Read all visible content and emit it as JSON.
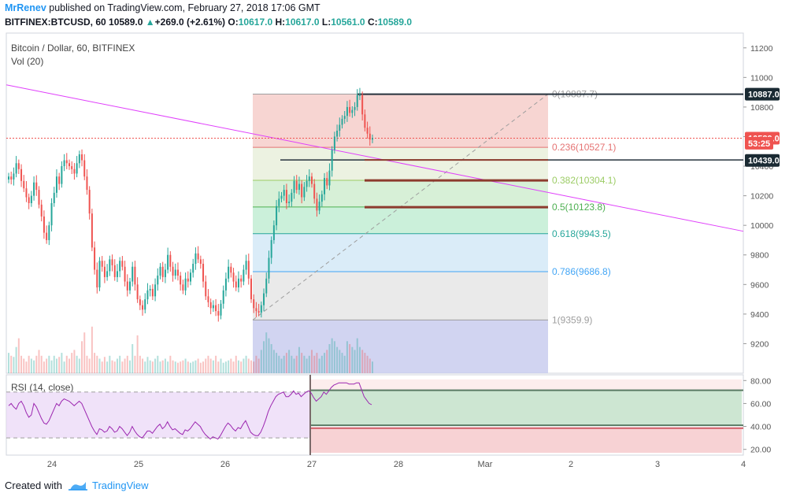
{
  "header": {
    "author": "MrRenev",
    "published": " published on TradingView.com, February 27, 2018 17:06 GMT",
    "symbol": "BITFINEX:BTCUSD, 60",
    "last": "10589.0",
    "change": "+269.0 (+2.61%)",
    "o_label": "O:",
    "o": "10617.0",
    "h_label": "H:",
    "h": "10617.0",
    "l_label": "L:",
    "l": "10561.0",
    "c_label": "C:",
    "c": "10589.0"
  },
  "footer": {
    "created_with": "Created with",
    "brand": "TradingView",
    "icon": "tradingview-logo-icon"
  },
  "colors": {
    "up": "#26a69a",
    "down": "#ef5350",
    "trendline": "#e040fb",
    "rsi": "#9c27b0"
  },
  "chart_data": [
    {
      "type": "candlestick",
      "title": "Bitcoin / Dollar, 60, BITFINEX",
      "volume_label": "Vol (20)",
      "x_ticks": [
        "24",
        "25",
        "26",
        "27",
        "28",
        "Mar",
        "2",
        "3",
        "4"
      ],
      "ylim": [
        9000,
        11300
      ],
      "y_ticks": [
        9200,
        9400,
        9600,
        9800,
        10000,
        10200,
        10400,
        10600,
        10800,
        11000,
        11200
      ],
      "price_labels": [
        {
          "value": 10887.0,
          "text": "10887.0",
          "kind": "line"
        },
        {
          "value": 10589.0,
          "text": "10589.0",
          "kind": "last"
        },
        {
          "value": 10555,
          "text": "53:25",
          "kind": "countdown"
        },
        {
          "value": 10439.0,
          "text": "10439.0",
          "kind": "line"
        }
      ],
      "fib_levels": [
        {
          "ratio": "0",
          "price": 10887.7,
          "label": "0(10887.7)",
          "color": "#9e9e9e"
        },
        {
          "ratio": "0.236",
          "price": 10527.1,
          "label": "0.236(10527.1)",
          "color": "#e57373"
        },
        {
          "ratio": "0.382",
          "price": 10304.1,
          "label": "0.382(10304.1)",
          "color": "#9ccc65"
        },
        {
          "ratio": "0.5",
          "price": 10123.8,
          "label": "0.5(10123.8)",
          "color": "#4caf50"
        },
        {
          "ratio": "0.618",
          "price": 9943.5,
          "label": "0.618(9943.5)",
          "color": "#26a69a"
        },
        {
          "ratio": "0.786",
          "price": 9686.8,
          "label": "0.786(9686.8)",
          "color": "#42a5f5"
        },
        {
          "ratio": "1",
          "price": 9359.9,
          "label": "1(9359.9)",
          "color": "#9e9e9e"
        }
      ],
      "horizontal_lines": [
        10439.0,
        10887.0
      ],
      "support_segments": [
        10442,
        10304,
        10123
      ],
      "candles_close": [
        10330,
        10310,
        10350,
        10420,
        10380,
        10300,
        10250,
        10190,
        10150,
        10200,
        10290,
        10240,
        10140,
        10060,
        9950,
        9900,
        10000,
        10150,
        10220,
        10330,
        10280,
        10400,
        10440,
        10420,
        10400,
        10380,
        10350,
        10420,
        10480,
        10440,
        10330,
        10240,
        10080,
        9850,
        9700,
        9580,
        9760,
        9720,
        9650,
        9690,
        9770,
        9730,
        9650,
        9690,
        9760,
        9720,
        9620,
        9560,
        9620,
        9720,
        9600,
        9500,
        9460,
        9430,
        9500,
        9560,
        9570,
        9520,
        9600,
        9660,
        9720,
        9650,
        9700,
        9800,
        9720,
        9660,
        9700,
        9660,
        9600,
        9560,
        9640,
        9620,
        9680,
        9740,
        9810,
        9770,
        9740,
        9620,
        9520,
        9480,
        9440,
        9460,
        9420,
        9390,
        9470,
        9560,
        9640,
        9720,
        9680,
        9620,
        9580,
        9640,
        9620,
        9700,
        9760,
        9640,
        9500,
        9440,
        9420,
        9410,
        9460,
        9540,
        9640,
        9780,
        9900,
        10000,
        10130,
        10180,
        10200,
        10240,
        10150,
        10160,
        10220,
        10300,
        10240,
        10280,
        10190,
        10260,
        10300,
        10330,
        10280,
        10180,
        10100,
        10160,
        10210,
        10320,
        10270,
        10370,
        10510,
        10600,
        10640,
        10680,
        10720,
        10740,
        10800,
        10760,
        10780,
        10800,
        10880,
        10880,
        10750,
        10660,
        10620,
        10580,
        10589
      ],
      "volume": [
        0.35,
        0.3,
        0.28,
        0.45,
        0.6,
        0.3,
        0.25,
        0.2,
        0.3,
        0.25,
        0.22,
        0.3,
        0.4,
        0.3,
        0.2,
        0.25,
        0.3,
        0.22,
        0.3,
        0.25,
        0.28,
        0.35,
        0.2,
        0.3,
        0.25,
        0.35,
        0.4,
        0.3,
        0.25,
        0.55,
        0.7,
        0.3,
        0.25,
        0.8,
        0.35,
        0.3,
        0.25,
        0.2,
        0.28,
        0.2,
        0.3,
        0.22,
        0.2,
        0.25,
        0.3,
        0.2,
        0.25,
        0.3,
        0.22,
        0.5,
        0.3,
        0.65,
        0.3,
        0.25,
        0.2,
        0.28,
        0.22,
        0.2,
        0.25,
        0.3,
        0.2,
        0.22,
        0.25,
        0.2,
        0.3,
        0.22,
        0.2,
        0.18,
        0.2,
        0.22,
        0.25,
        0.2,
        0.18,
        0.2,
        0.22,
        0.25,
        0.18,
        0.2,
        0.25,
        0.3,
        0.25,
        0.22,
        0.3,
        0.2,
        0.25,
        0.18,
        0.2,
        0.22,
        0.25,
        0.2,
        0.3,
        0.22,
        0.2,
        0.25,
        0.3,
        0.25,
        0.22,
        0.2,
        0.3,
        0.25,
        0.4,
        0.55,
        0.7,
        0.6,
        0.5,
        0.4,
        0.35,
        0.3,
        0.25,
        0.3,
        0.35,
        0.4,
        0.3,
        0.25,
        0.3,
        0.45,
        0.35,
        0.3,
        0.25,
        0.3,
        0.4,
        0.3,
        0.35,
        0.25,
        0.3,
        0.35,
        0.4,
        0.5,
        0.6,
        0.55,
        0.45,
        0.4,
        0.35,
        0.3,
        0.55,
        0.5,
        0.45,
        0.4,
        0.6,
        0.45,
        0.4,
        0.35,
        0.3,
        0.25,
        0.2
      ]
    },
    {
      "type": "line",
      "title": "RSI (14, close)",
      "ylim": [
        15,
        85
      ],
      "y_ticks": [
        20,
        40,
        60,
        80
      ],
      "bands": [
        30,
        70
      ],
      "values": [
        58,
        60,
        57,
        55,
        60,
        62,
        58,
        52,
        48,
        50,
        60,
        57,
        52,
        47,
        43,
        42,
        45,
        50,
        55,
        60,
        58,
        62,
        64,
        63,
        62,
        60,
        58,
        60,
        62,
        60,
        55,
        50,
        45,
        40,
        36,
        33,
        38,
        37,
        35,
        36,
        40,
        38,
        35,
        36,
        40,
        38,
        35,
        32,
        35,
        40,
        36,
        33,
        31,
        30,
        33,
        36,
        36,
        34,
        37,
        40,
        42,
        38,
        40,
        44,
        40,
        37,
        38,
        36,
        34,
        33,
        37,
        36,
        38,
        41,
        44,
        42,
        40,
        36,
        33,
        31,
        29,
        31,
        30,
        29,
        32,
        36,
        40,
        43,
        41,
        38,
        36,
        39,
        38,
        42,
        45,
        40,
        35,
        33,
        32,
        32,
        35,
        40,
        46,
        53,
        58,
        62,
        66,
        68,
        69,
        70,
        66,
        66,
        68,
        71,
        68,
        69,
        66,
        68,
        70,
        71,
        69,
        65,
        62,
        64,
        66,
        70,
        68,
        71,
        74,
        76,
        77,
        78,
        78,
        78,
        78,
        77,
        77,
        77,
        78,
        78,
        72,
        66,
        63,
        60,
        59
      ]
    }
  ]
}
